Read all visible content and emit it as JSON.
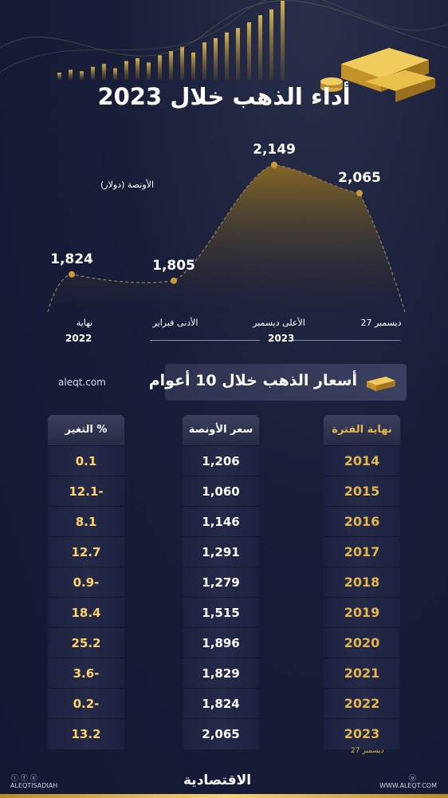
{
  "title": "أداء الذهب خلال 2023",
  "chart_data": {
    "type": "area",
    "unit_label": "الأونصة (دولار)",
    "points": [
      {
        "label": "نهاية",
        "value": 1824,
        "value_label": "1,824"
      },
      {
        "label": "الأدنى فبراير",
        "value": 1805,
        "value_label": "1,805"
      },
      {
        "label": "الأعلى ديسمبر",
        "value": 2149,
        "value_label": "2,149"
      },
      {
        "label": "27 ديسمبر",
        "value": 2065,
        "value_label": "2,065"
      }
    ],
    "group_labels": [
      "2022",
      "2023"
    ]
  },
  "site": "aleqt.com",
  "table_title": "أسعار الذهب خلال 10 أعوام",
  "table": {
    "headers": {
      "period": "نهاية الفترة",
      "price": "سعر الأونصة",
      "change": "التغير %"
    },
    "rows": [
      {
        "year": "2014",
        "price": "1,206",
        "change": "0.1",
        "neg": false
      },
      {
        "year": "2015",
        "price": "1,060",
        "change": "12.1-",
        "neg": true
      },
      {
        "year": "2016",
        "price": "1,146",
        "change": "8.1",
        "neg": false
      },
      {
        "year": "2017",
        "price": "1,291",
        "change": "12.7",
        "neg": false
      },
      {
        "year": "2018",
        "price": "1,279",
        "change": "0.9-",
        "neg": true
      },
      {
        "year": "2019",
        "price": "1,515",
        "change": "18.4",
        "neg": false
      },
      {
        "year": "2020",
        "price": "1,896",
        "change": "25.2",
        "neg": false
      },
      {
        "year": "2021",
        "price": "1,829",
        "change": "3.6-",
        "neg": true
      },
      {
        "year": "2022",
        "price": "1,824",
        "change": "0.2-",
        "neg": true
      },
      {
        "year": "2023",
        "price": "2,065",
        "change": "13.2",
        "neg": false
      }
    ],
    "last_row_note": "27 ديسمبر"
  },
  "footer": {
    "left": "ALEQTISADIAH",
    "logo": "الاقتصادية",
    "right": "WWW.ALEQT.COM",
    "icons": "ⓘ ⓕ ⓧ",
    "right_icon": "ⓞ"
  },
  "colors": {
    "gold": "#e2b64a",
    "bg": "#141a33",
    "negative": "#be1937"
  }
}
